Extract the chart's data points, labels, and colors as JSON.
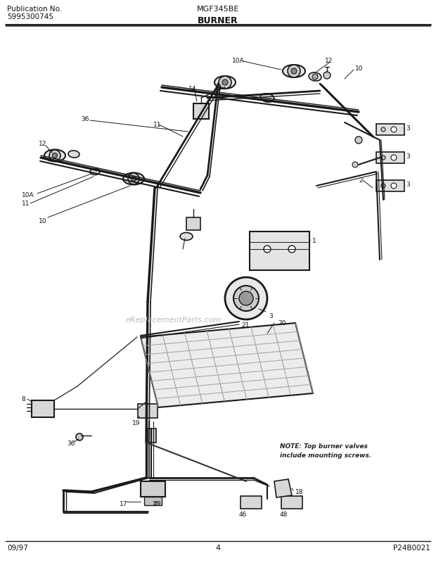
{
  "title_left_line1": "Publication No.",
  "title_left_line2": "5995300745",
  "title_center_top": "MGF345BE",
  "title_center_bottom": "BURNER",
  "footer_left": "09/97",
  "footer_center": "4",
  "footer_right": "P24B0021",
  "note_line1": "NOTE: Top burner valves",
  "note_line2": "include mounting screws.",
  "watermark": "eReplacementParts.com",
  "bg_color": "#ffffff",
  "line_color": "#1a1a1a",
  "text_color": "#111111",
  "fig_width": 6.2,
  "fig_height": 8.04,
  "dpi": 100
}
